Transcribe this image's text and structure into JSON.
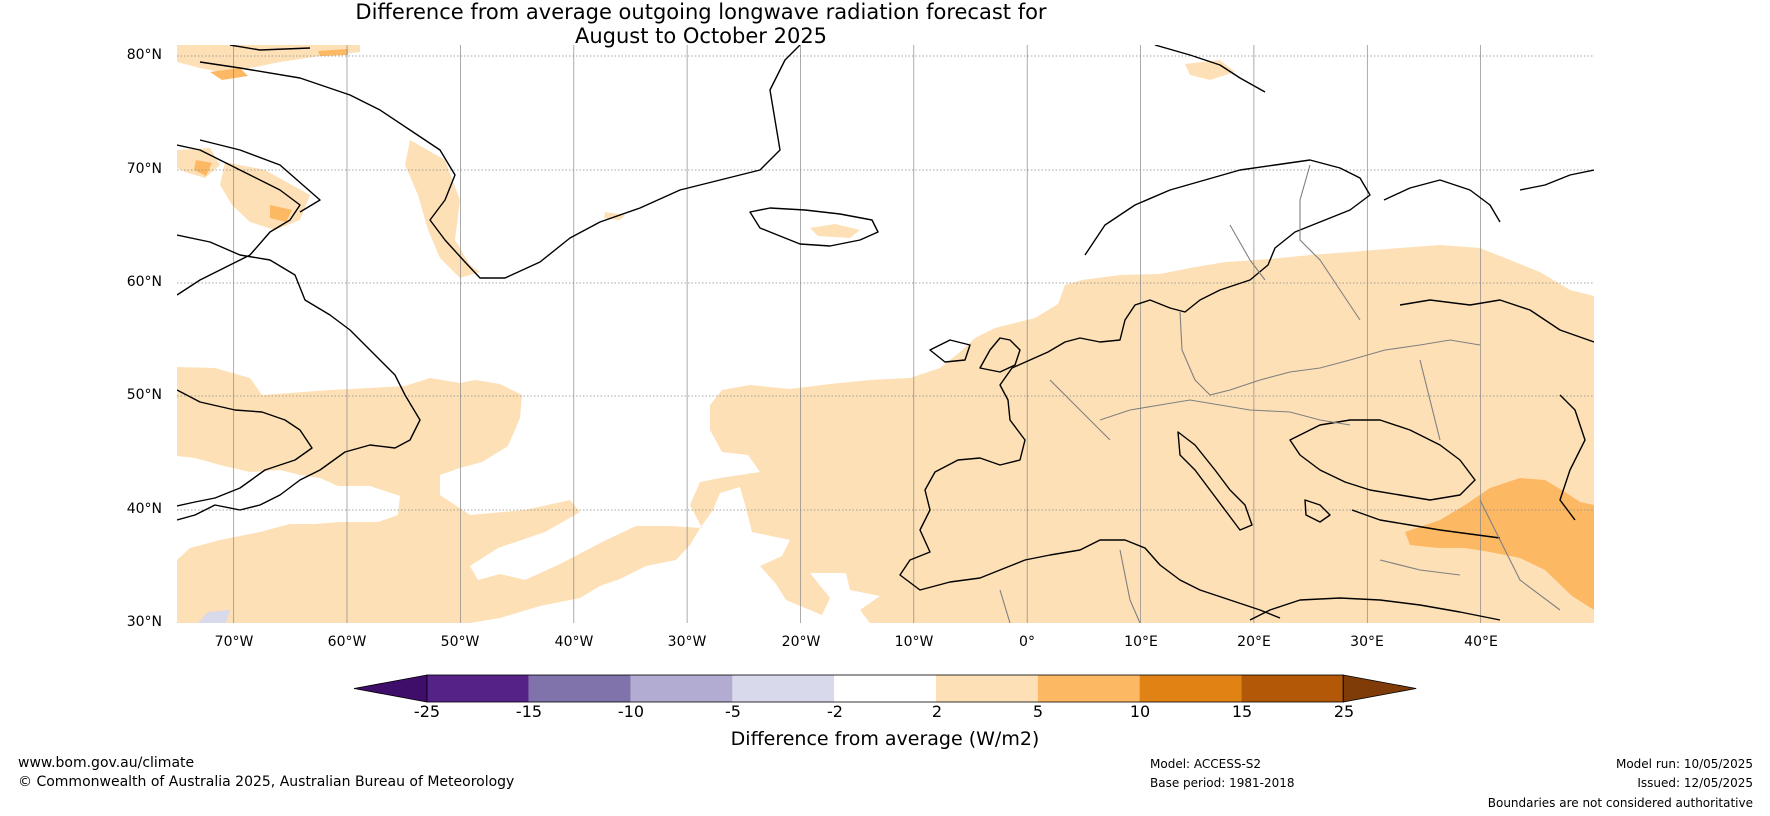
{
  "title": {
    "line1": "Difference from average outgoing longwave radiation forecast for",
    "line2": "August to October 2025"
  },
  "map": {
    "projection": "equirectangular",
    "lon_range": [
      -75,
      50
    ],
    "lat_range": [
      30,
      81
    ],
    "lat_labels": [
      "80°N",
      "70°N",
      "60°N",
      "50°N",
      "40°N",
      "30°N"
    ],
    "lon_labels": [
      "70°W",
      "60°W",
      "50°W",
      "40°W",
      "30°W",
      "20°W",
      "10°W",
      "0°",
      "10°E",
      "20°E",
      "30°E",
      "40°E"
    ],
    "regions": [
      {
        "name": "north-atlantic-europe-anomaly",
        "category": "2 to 5"
      },
      {
        "name": "middle-east-anomaly",
        "category": "5 to 10"
      },
      {
        "name": "greenland-anomaly-patches",
        "category": "2 to 5"
      },
      {
        "name": "southwest-weak-negative-patch",
        "category": "-5 to -2"
      }
    ]
  },
  "colorbar": {
    "title": "Difference from average (W/m2)",
    "ticks": [
      "-25",
      "-15",
      "-10",
      "-5",
      "-2",
      "2",
      "5",
      "10",
      "15",
      "25"
    ],
    "colors": [
      "#3f0e6b",
      "#552388",
      "#8073ac",
      "#b2abd2",
      "#d8daeb",
      "#ffffff",
      "#fde0b6",
      "#fdb863",
      "#e08214",
      "#b35806",
      "#7f3b08"
    ]
  },
  "footer": {
    "website": "www.bom.gov.au/climate",
    "copyright": "© Commonwealth of Australia 2025, Australian Bureau of Meteorology",
    "model": "Model: ACCESS-S2",
    "base_period": "Base period: 1981-2018",
    "model_run": "Model run: 10/05/2025",
    "issued": "Issued: 12/05/2025",
    "disclaimer": "Boundaries are not considered authoritative"
  }
}
